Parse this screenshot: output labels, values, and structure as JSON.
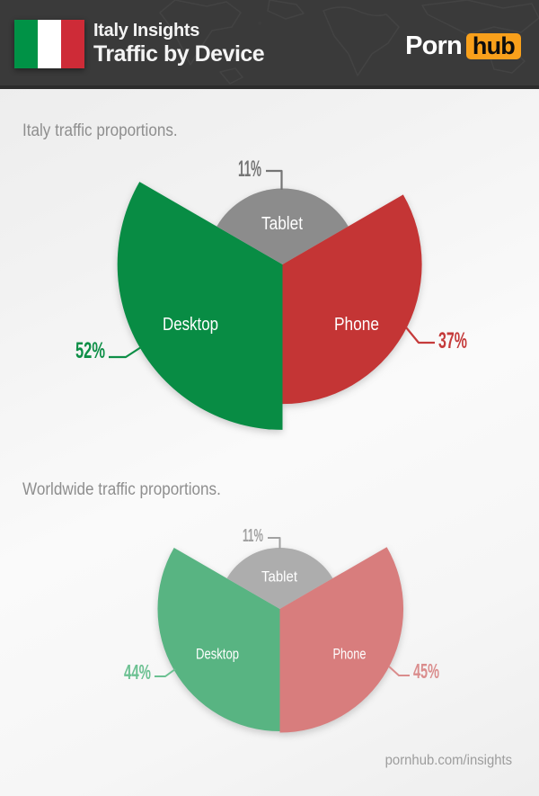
{
  "header": {
    "flag_icon": "italy-flag-icon",
    "map_decoration_icon": "world-map-decoration",
    "subtitle": "Italy Insights",
    "title": "Traffic by Device",
    "logo": {
      "part1": "Porn",
      "part2": "hub"
    }
  },
  "footer": {
    "url": "pornhub.com/insights"
  },
  "colors": {
    "header_bg": "#3a3a3a",
    "header_border": "#2c2c2c",
    "logo_orange": "#f9a01b",
    "flag_green": "#009246",
    "flag_white": "#ffffff",
    "flag_red": "#ce2b37",
    "heading_gray": "#8e8e8e",
    "page_bg": "#f2f2f2"
  },
  "chart_data": [
    {
      "type": "pie",
      "variant": "polar-rose: three equal 120-degree sectors, radius proportional to sqrt(value)",
      "title": "Italy traffic proportions.",
      "categories": [
        "Desktop",
        "Tablet",
        "Phone"
      ],
      "values": [
        52,
        11,
        37
      ],
      "unit": "%",
      "value_labels": [
        "52%",
        "11%",
        "37%"
      ],
      "slice_colors": [
        "#088c44",
        "#8c8c8c",
        "#c43535"
      ],
      "callout_colors": [
        "#0e8f47",
        "#757575",
        "#c53b3b"
      ],
      "inside_label_color": "#ffffff",
      "legend": "category labels inside slices, percentage callouts outside"
    },
    {
      "type": "pie",
      "variant": "polar-rose: three equal 120-degree sectors, radius proportional to sqrt(value)",
      "title": "Worldwide traffic proportions.",
      "categories": [
        "Desktop",
        "Tablet",
        "Phone"
      ],
      "values": [
        44,
        11,
        45
      ],
      "unit": "%",
      "value_labels": [
        "44%",
        "11%",
        "45%"
      ],
      "slice_colors": [
        "#58b482",
        "#adadad",
        "#d87d7d"
      ],
      "callout_colors": [
        "#6cc192",
        "#a2a2a2",
        "#da8d8d"
      ],
      "inside_label_color": "#ffffff",
      "legend": "category labels inside slices, percentage callouts outside"
    }
  ]
}
